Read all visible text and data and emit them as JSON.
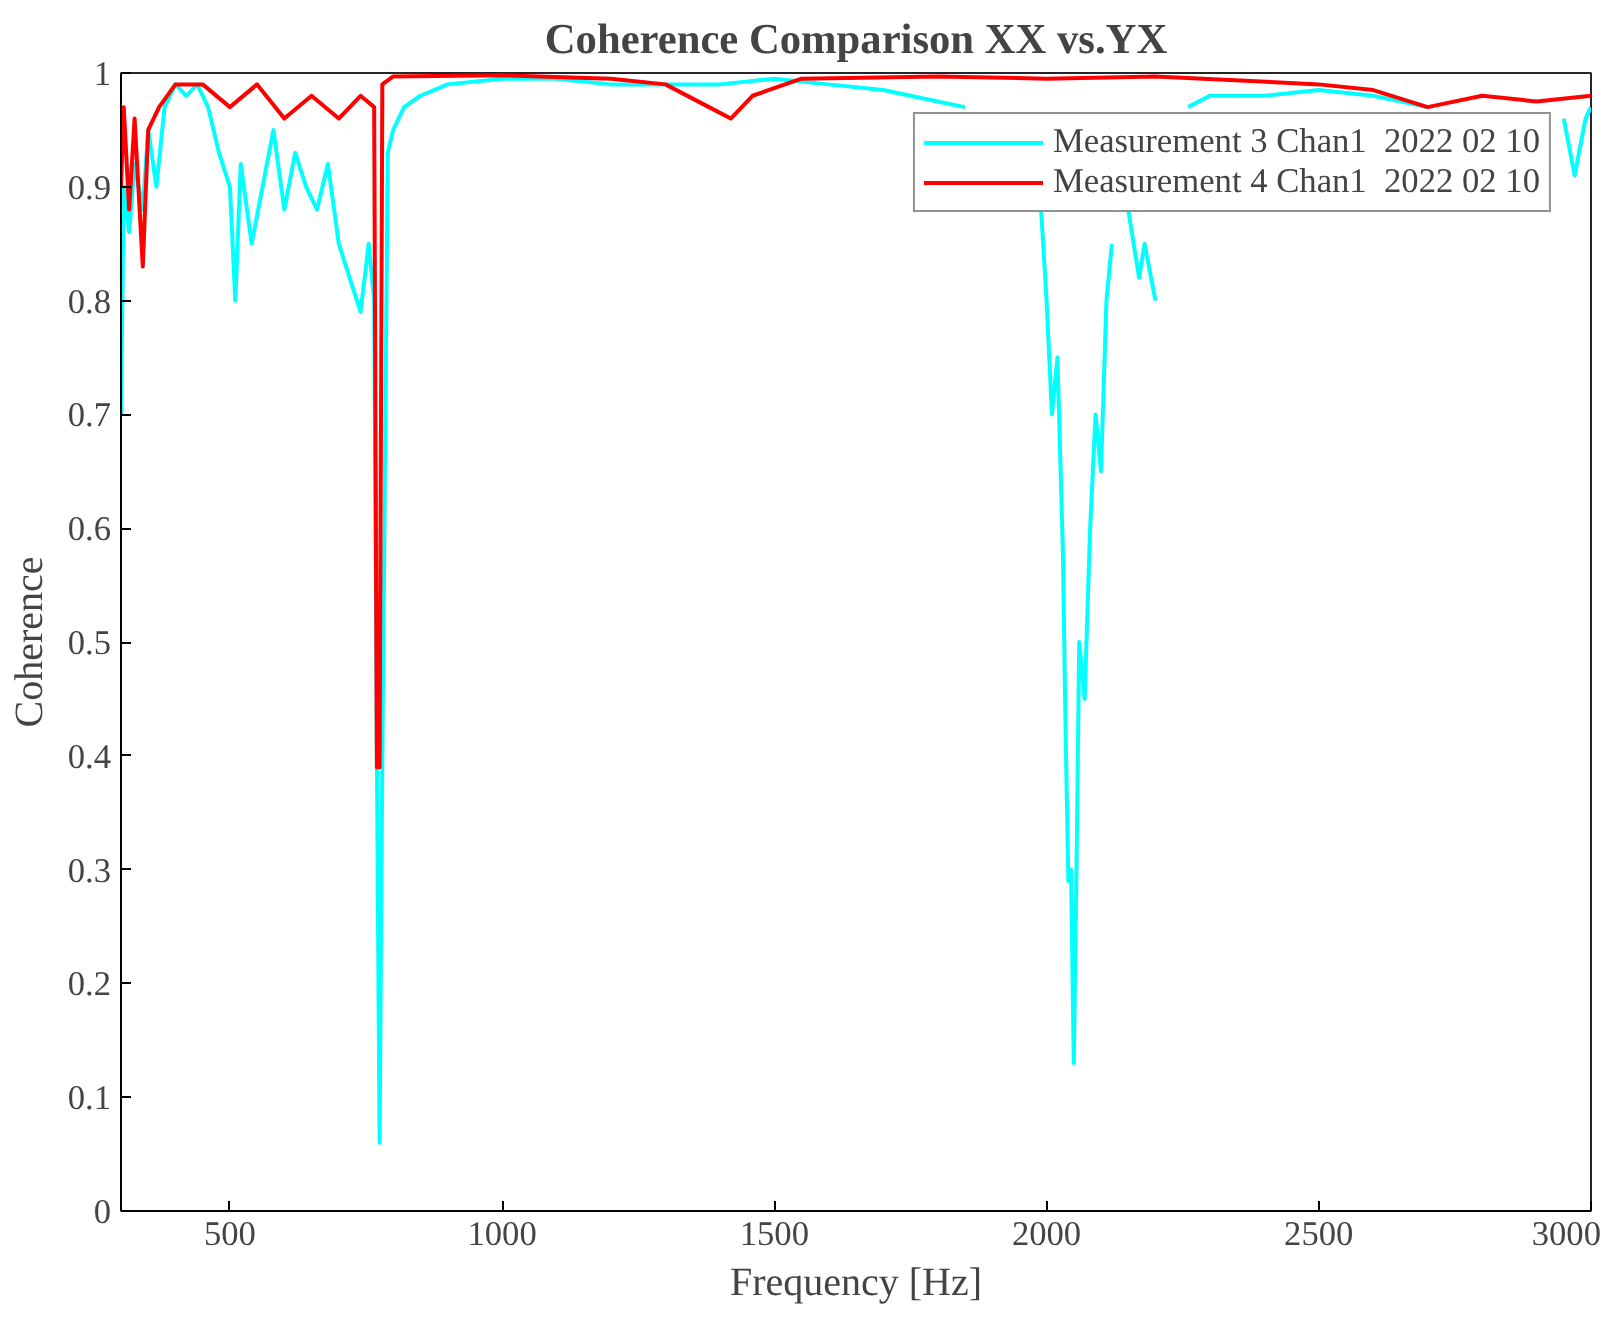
{
  "chart_data": {
    "type": "line",
    "title": "Coherence Comparison XX vs.YX",
    "xlabel": "Frequency [Hz]",
    "ylabel": "Coherence",
    "xlim": [
      300,
      3000
    ],
    "ylim": [
      0,
      1
    ],
    "xticks": [
      500,
      1000,
      1500,
      2000,
      2500,
      3000
    ],
    "yticks": [
      0,
      0.1,
      0.2,
      0.3,
      0.4,
      0.5,
      0.6,
      0.7,
      0.8,
      0.9,
      1
    ],
    "grid": false,
    "legend": "top right",
    "marker": "none",
    "line_style": "solid",
    "series": [
      {
        "name": "Measurement 3 Chan1  2022 02 10",
        "color": "#00ffff",
        "x": [
          300,
          305,
          315,
          325,
          340,
          350,
          365,
          380,
          400,
          420,
          440,
          460,
          480,
          500,
          510,
          520,
          540,
          560,
          580,
          600,
          620,
          640,
          660,
          680,
          700,
          720,
          740,
          755,
          765,
          770,
          775,
          780,
          790,
          800,
          820,
          850,
          900,
          1000,
          1100,
          1200,
          1300,
          1400,
          1500,
          1600,
          1700,
          1750,
          1800,
          1850,
          1900,
          1950,
          1990,
          2000,
          2010,
          2020,
          2030,
          2035,
          2040,
          2045,
          2050,
          2055,
          2060,
          2070,
          2080,
          2090,
          2100,
          2110,
          2120,
          2130,
          2150,
          2170,
          2180,
          2200,
          2220,
          2260,
          2300,
          2400,
          2500,
          2600,
          2700,
          2800,
          2850,
          2900,
          2950,
          2970,
          2990,
          3000
        ],
        "values": [
          0.7,
          0.9,
          0.86,
          0.92,
          0.88,
          0.95,
          0.9,
          0.97,
          0.99,
          0.98,
          0.99,
          0.97,
          0.93,
          0.9,
          0.8,
          0.92,
          0.85,
          0.9,
          0.95,
          0.88,
          0.93,
          0.9,
          0.88,
          0.92,
          0.85,
          0.82,
          0.79,
          0.85,
          0.8,
          0.4,
          0.06,
          0.4,
          0.93,
          0.95,
          0.97,
          0.98,
          0.99,
          0.995,
          0.995,
          0.99,
          0.99,
          0.99,
          0.995,
          0.99,
          0.985,
          0.98,
          0.975,
          0.97,
          null,
          null,
          0.88,
          0.8,
          0.7,
          0.75,
          0.58,
          0.42,
          0.29,
          0.3,
          0.13,
          0.3,
          0.5,
          0.45,
          0.6,
          0.7,
          0.65,
          0.8,
          0.85,
          null,
          0.88,
          0.82,
          0.85,
          0.8,
          null,
          0.97,
          0.98,
          0.98,
          0.985,
          0.98,
          0.97,
          null,
          null,
          null,
          0.96,
          0.91,
          0.96,
          0.97
        ]
      },
      {
        "name": "Measurement 4 Chan1  2022 02 10",
        "color": "#ff0000",
        "x": [
          300,
          305,
          315,
          325,
          340,
          350,
          370,
          400,
          450,
          500,
          550,
          600,
          650,
          700,
          740,
          765,
          770,
          775,
          780,
          800,
          1000,
          1200,
          1300,
          1380,
          1420,
          1460,
          1550,
          1800,
          2000,
          2200,
          2500,
          2600,
          2700,
          2800,
          2900,
          3000
        ],
        "values": [
          0.9,
          0.97,
          0.88,
          0.96,
          0.83,
          0.95,
          0.97,
          0.99,
          0.99,
          0.97,
          0.99,
          0.96,
          0.98,
          0.96,
          0.98,
          0.97,
          0.39,
          0.39,
          0.99,
          0.997,
          0.998,
          0.995,
          0.99,
          0.97,
          0.96,
          0.98,
          0.995,
          0.997,
          0.995,
          0.997,
          0.99,
          0.985,
          0.97,
          0.98,
          0.975,
          0.98
        ]
      }
    ]
  }
}
